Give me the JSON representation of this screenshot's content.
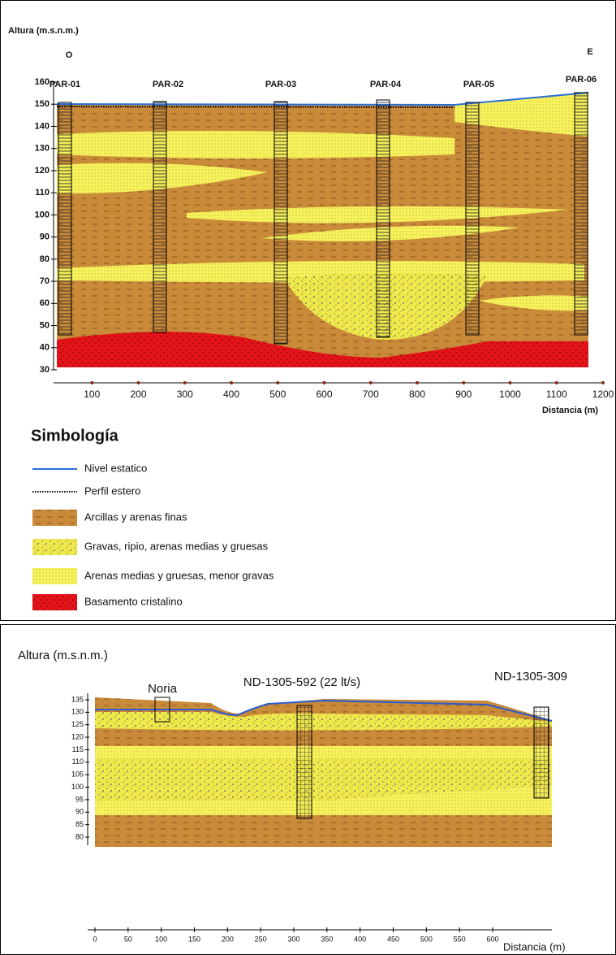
{
  "section_1": {
    "y_axis_label": "Altura (m.s.n.m.)",
    "x_axis_label": "Distancia (m)",
    "west": "O",
    "east": "E",
    "wells": [
      "PAR-01",
      "PAR-02",
      "PAR-03",
      "PAR-04",
      "PAR-05",
      "PAR-06"
    ],
    "ylim": [
      30,
      160
    ],
    "yticks": [
      30,
      40,
      50,
      60,
      70,
      80,
      90,
      100,
      110,
      120,
      130,
      140,
      150,
      160
    ],
    "xlim": [
      0,
      1200
    ],
    "xticks": [
      100,
      200,
      300,
      400,
      500,
      600,
      700,
      800,
      900,
      1000,
      1100,
      1200
    ],
    "legend": {
      "title": "Simbología",
      "items": [
        "Nivel estatico",
        "Perfil estero",
        "Arcillas y arenas finas",
        "Gravas, ripio, arenas medias y gruesas",
        "Arenas medias y gruesas, menor gravas",
        "Basamento cristalino"
      ]
    }
  },
  "section_2": {
    "y_axis_label": "Altura (m.s.n.m.)",
    "x_axis_label": "Distancia (m)",
    "wells": [
      "Noria",
      "ND-1305-592 (22 lt/s)",
      "ND-1305-309"
    ],
    "ylim": [
      80,
      135
    ],
    "yticks": [
      80,
      85,
      90,
      95,
      100,
      105,
      110,
      115,
      120,
      125,
      130,
      135
    ],
    "xlim": [
      0,
      600
    ],
    "xticks": [
      0,
      50,
      100,
      150,
      200,
      250,
      300,
      350,
      400,
      450,
      500,
      550,
      600
    ]
  }
}
